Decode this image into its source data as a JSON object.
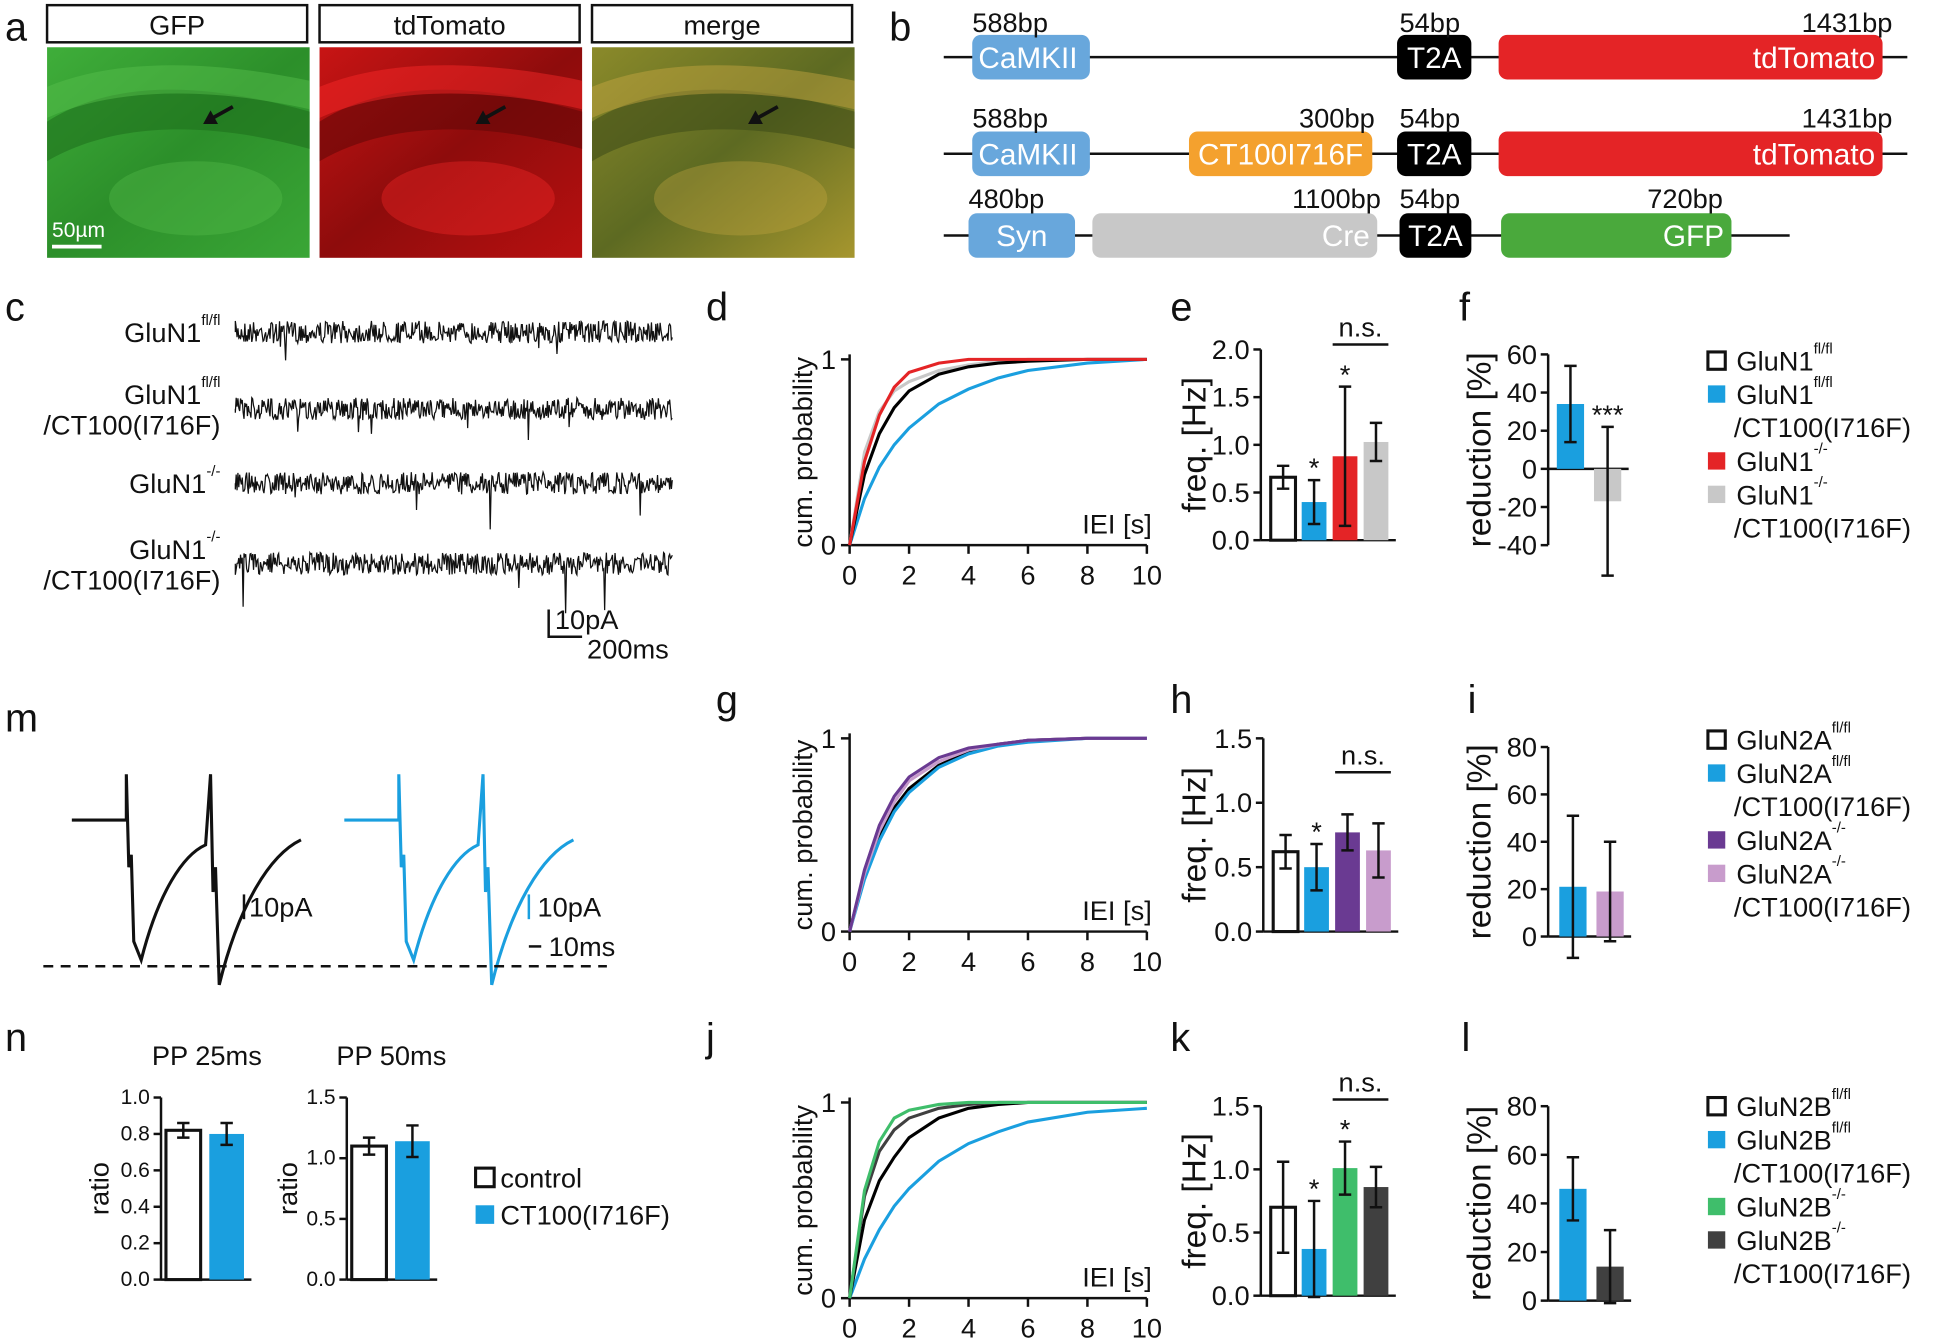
{
  "panel_labels": [
    "a",
    "b",
    "c",
    "d",
    "e",
    "f",
    "m",
    "g",
    "h",
    "i",
    "n",
    "j",
    "k",
    "l"
  ],
  "panel_a": {
    "images": [
      "GFP",
      "tdTomato",
      "merge"
    ],
    "scale_bar": "50µm"
  },
  "panel_b": {
    "constructs": [
      {
        "elements": [
          {
            "label": "CaMKII",
            "bp": "588bp",
            "color": "#68a7dc"
          },
          {
            "label": "T2A",
            "bp": "54bp",
            "color": "#000000"
          },
          {
            "label": "tdTomato",
            "bp": "1431bp",
            "color": "#e42426"
          }
        ]
      },
      {
        "elements": [
          {
            "label": "CaMKII",
            "bp": "588bp",
            "color": "#68a7dc"
          },
          {
            "label": "CT100I716F",
            "bp": "300bp",
            "color": "#f4a12e"
          },
          {
            "label": "T2A",
            "bp": "54bp",
            "color": "#000000"
          },
          {
            "label": "tdTomato",
            "bp": "1431bp",
            "color": "#e42426"
          }
        ]
      },
      {
        "elements": [
          {
            "label": "Syn",
            "bp": "480bp",
            "color": "#68a7dc"
          },
          {
            "label": "Cre",
            "bp": "1100bp",
            "color": "#c8c8c8"
          },
          {
            "label": "T2A",
            "bp": "54bp",
            "color": "#000000"
          },
          {
            "label": "GFP",
            "bp": "720bp",
            "color": "#4aa93c"
          }
        ]
      }
    ]
  },
  "panel_c": {
    "traces": [
      {
        "name": "GluN1",
        "sup": "fl/fl"
      },
      {
        "name": "GluN1",
        "sup": "fl/fl",
        "line2": "/CT100(I716F)"
      },
      {
        "name": "GluN1",
        "sup": "-/-"
      },
      {
        "name": "GluN1",
        "sup": "-/-",
        "line2": "/CT100(I716F)"
      }
    ],
    "scale_bar": {
      "y": "10pA",
      "x": "200ms"
    }
  },
  "panel_m": {
    "scale_bars": [
      "10pA",
      "10pA",
      "10ms"
    ]
  },
  "panel_n": {
    "legend": [
      {
        "name": "control",
        "color": "#ffffff"
      },
      {
        "name": "CT100(I716F)",
        "color": "#1a9fdf"
      }
    ]
  },
  "legends": [
    [
      {
        "name": "GluN1",
        "sup": "fl/fl",
        "color": "#ffffff"
      },
      {
        "name": "GluN1",
        "sup": "fl/fl",
        "line2": "/CT100(I716F)",
        "color": "#1a9fdf"
      },
      {
        "name": "GluN1",
        "sup": "-/-",
        "color": "#e42426"
      },
      {
        "name": "GluN1",
        "sup": "-/-",
        "line2": "/CT100(I716F)",
        "color": "#c8c8c8"
      }
    ],
    [
      {
        "name": "GluN2A",
        "sup": "fl/fl",
        "color": "#ffffff"
      },
      {
        "name": "GluN2A",
        "sup": "fl/fl",
        "line2": "/CT100(I716F)",
        "color": "#1a9fdf"
      },
      {
        "name": "GluN2A",
        "sup": "-/-",
        "color": "#6a3a92"
      },
      {
        "name": "GluN2A",
        "sup": "-/-",
        "line2": "/CT100(I716F)",
        "color": "#c89ccc"
      }
    ],
    [
      {
        "name": "GluN2B",
        "sup": "fl/fl",
        "color": "#ffffff"
      },
      {
        "name": "GluN2B",
        "sup": "fl/fl",
        "line2": "/CT100(I716F)",
        "color": "#1a9fdf"
      },
      {
        "name": "GluN2B",
        "sup": "-/-",
        "color": "#3fbe6b"
      },
      {
        "name": "GluN2B",
        "sup": "-/-",
        "line2": "/CT100(I716F)",
        "color": "#404040"
      }
    ]
  ],
  "chart_data": [
    {
      "type": "line",
      "y_label": "cum. probability",
      "x_label": "IEI [s]",
      "xlim": [
        0,
        10
      ],
      "ylim": [
        0,
        1
      ],
      "xticks": [
        0,
        2,
        4,
        6,
        8,
        10
      ],
      "yticks": [
        0,
        1
      ],
      "x": [
        0,
        0.5,
        1,
        1.5,
        2,
        3,
        4,
        5,
        6,
        8,
        10
      ],
      "series": [
        {
          "color": "#1a9fdf",
          "values": [
            0,
            0.25,
            0.42,
            0.54,
            0.63,
            0.76,
            0.84,
            0.9,
            0.94,
            0.98,
            1
          ]
        },
        {
          "color": "#c8c8c8",
          "values": [
            0,
            0.5,
            0.72,
            0.83,
            0.88,
            0.94,
            0.97,
            0.99,
            1,
            1,
            1
          ]
        },
        {
          "color": "#000000",
          "values": [
            0,
            0.38,
            0.6,
            0.74,
            0.83,
            0.92,
            0.96,
            0.98,
            0.99,
            1,
            1
          ]
        },
        {
          "color": "#e42426",
          "values": [
            0,
            0.45,
            0.7,
            0.85,
            0.93,
            0.98,
            1,
            1,
            1,
            1,
            1
          ]
        }
      ]
    },
    {
      "type": "bar",
      "y_label": "freq. [Hz]",
      "ylim": [
        0,
        2
      ],
      "yticks": [
        {
          "value": 0,
          "label": "0.0"
        },
        0.5,
        {
          "value": 1,
          "label": "1.0"
        },
        1.5,
        {
          "value": 2,
          "label": "2.0"
        }
      ],
      "values": [
        0.66,
        0.4,
        0.88,
        1.03
      ],
      "errors": [
        0.12,
        0.23,
        0.73,
        0.2
      ],
      "colors": [
        "#ffffff",
        "#1a9fdf",
        "#e42426",
        "#c8c8c8"
      ],
      "significance": [
        null,
        "*",
        "*",
        null
      ],
      "bracket_label": "n.s."
    },
    {
      "type": "bar",
      "y_label": "reduction [%]",
      "ylim": [
        -40,
        60
      ],
      "yticks": [
        -40,
        -20,
        0,
        20,
        40,
        60
      ],
      "values": [
        34,
        -17
      ],
      "errors": [
        20,
        39
      ],
      "colors": [
        "#1a9fdf",
        "#c8c8c8"
      ],
      "significance": [
        null,
        "***"
      ]
    },
    {
      "type": "line",
      "y_label": "cum. probability",
      "x_label": "IEI [s]",
      "xlim": [
        0,
        10
      ],
      "ylim": [
        0,
        1
      ],
      "xticks": [
        0,
        2,
        4,
        6,
        8,
        10
      ],
      "yticks": [
        0,
        1
      ],
      "x": [
        0,
        0.5,
        1,
        1.5,
        2,
        3,
        4,
        5,
        6,
        8,
        10
      ],
      "series": [
        {
          "color": "#000000",
          "values": [
            0,
            0.3,
            0.5,
            0.64,
            0.74,
            0.86,
            0.93,
            0.97,
            0.99,
            1,
            1
          ]
        },
        {
          "color": "#1a9fdf",
          "values": [
            0,
            0.27,
            0.47,
            0.62,
            0.72,
            0.85,
            0.92,
            0.96,
            0.98,
            1,
            1
          ]
        },
        {
          "color": "#c89ccc",
          "values": [
            0,
            0.3,
            0.52,
            0.67,
            0.78,
            0.88,
            0.94,
            0.97,
            0.99,
            1,
            1
          ]
        },
        {
          "color": "#6a3a92",
          "values": [
            0,
            0.32,
            0.55,
            0.7,
            0.8,
            0.9,
            0.95,
            0.97,
            0.99,
            1,
            1
          ]
        }
      ]
    },
    {
      "type": "bar",
      "y_label": "freq. [Hz]",
      "ylim": [
        0,
        1.5
      ],
      "yticks": [
        {
          "value": 0,
          "label": "0.0"
        },
        0.5,
        {
          "value": 1,
          "label": "1.0"
        },
        1.5
      ],
      "values": [
        0.62,
        0.5,
        0.77,
        0.63
      ],
      "errors": [
        0.13,
        0.18,
        0.14,
        0.21
      ],
      "colors": [
        "#ffffff",
        "#1a9fdf",
        "#6a3a92",
        "#c89ccc"
      ],
      "significance": [
        null,
        "*",
        null,
        null
      ],
      "bracket_label": "n.s."
    },
    {
      "type": "bar",
      "y_label": "reduction [%]",
      "ylim": [
        0,
        80
      ],
      "yticks": [
        0,
        20,
        40,
        60,
        80
      ],
      "values": [
        21,
        19
      ],
      "errors": [
        30,
        21
      ],
      "colors": [
        "#1a9fdf",
        "#c89ccc"
      ]
    },
    {
      "type": "line",
      "y_label": "cum. probability",
      "x_label": "IEI [s]",
      "xlim": [
        0,
        10
      ],
      "ylim": [
        0,
        1
      ],
      "xticks": [
        0,
        2,
        4,
        6,
        8,
        10
      ],
      "yticks": [
        0,
        1
      ],
      "x": [
        0,
        0.5,
        1,
        1.5,
        2,
        3,
        4,
        5,
        6,
        8,
        10
      ],
      "series": [
        {
          "color": "#1a9fdf",
          "values": [
            0,
            0.2,
            0.35,
            0.47,
            0.56,
            0.7,
            0.79,
            0.85,
            0.9,
            0.95,
            0.97
          ]
        },
        {
          "color": "#000000",
          "values": [
            0,
            0.4,
            0.6,
            0.72,
            0.82,
            0.92,
            0.97,
            0.99,
            1,
            1,
            1
          ]
        },
        {
          "color": "#404040",
          "values": [
            0,
            0.52,
            0.75,
            0.86,
            0.92,
            0.97,
            0.99,
            1,
            1,
            1,
            1
          ]
        },
        {
          "color": "#3fbe6b",
          "values": [
            0,
            0.55,
            0.8,
            0.92,
            0.96,
            0.99,
            1,
            1,
            1,
            1,
            1
          ]
        }
      ]
    },
    {
      "type": "bar",
      "y_label": "freq. [Hz]",
      "ylim": [
        0,
        1.5
      ],
      "yticks": [
        {
          "value": 0,
          "label": "0.0"
        },
        0.5,
        {
          "value": 1,
          "label": "1.0"
        },
        1.5
      ],
      "values": [
        0.7,
        0.37,
        1.01,
        0.86
      ],
      "errors": [
        0.36,
        0.38,
        0.21,
        0.16
      ],
      "colors": [
        "#ffffff",
        "#1a9fdf",
        "#3fbe6b",
        "#404040"
      ],
      "significance": [
        null,
        "*",
        "*",
        null
      ],
      "bracket_label": "n.s."
    },
    {
      "type": "bar",
      "y_label": "reduction [%]",
      "ylim": [
        0,
        80
      ],
      "yticks": [
        0,
        20,
        40,
        60,
        80
      ],
      "values": [
        46,
        14
      ],
      "errors": [
        13,
        15
      ],
      "colors": [
        "#1a9fdf",
        "#404040"
      ]
    },
    {
      "type": "bar",
      "title": "PP 25ms",
      "y_label": "ratio",
      "ylim": [
        0,
        1
      ],
      "yticks": [
        {
          "value": 0,
          "label": "0.0"
        },
        0.2,
        0.4,
        0.6,
        0.8,
        {
          "value": 1,
          "label": "1.0"
        }
      ],
      "values": [
        0.82,
        0.8
      ],
      "errors": [
        0.04,
        0.06
      ],
      "colors": [
        "#ffffff",
        "#1a9fdf"
      ]
    },
    {
      "type": "bar",
      "title": "PP 50ms",
      "y_label": "ratio",
      "ylim": [
        0,
        1.5
      ],
      "yticks": [
        {
          "value": 0,
          "label": "0.0"
        },
        0.5,
        {
          "value": 1,
          "label": "1.0"
        },
        1.5
      ],
      "values": [
        1.1,
        1.14
      ],
      "errors": [
        0.07,
        0.13
      ],
      "colors": [
        "#ffffff",
        "#1a9fdf"
      ]
    }
  ]
}
